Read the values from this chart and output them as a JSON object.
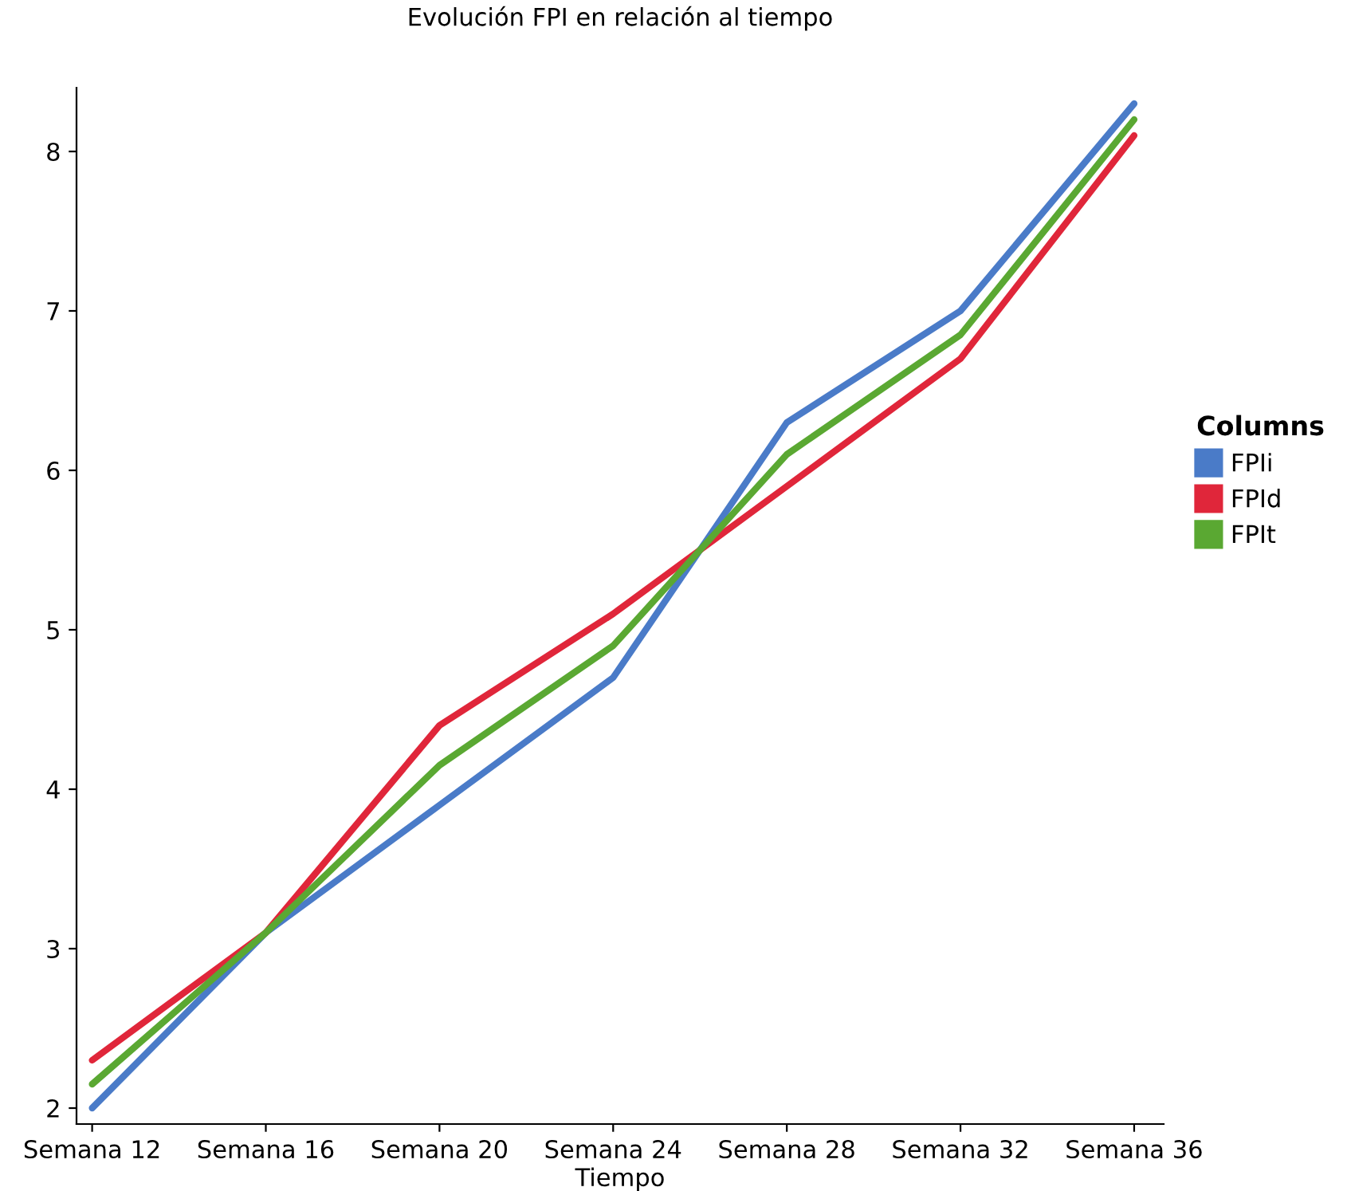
{
  "chart_data": {
    "type": "line",
    "title": "Evolución FPI en relación al tiempo",
    "xlabel": "Tiempo",
    "legend_title": "Columns",
    "categories": [
      "Semana 12",
      "Semana 16",
      "Semana 20",
      "Semana 24",
      "Semana 28",
      "Semana 32",
      "Semana 36"
    ],
    "series": [
      {
        "name": "FPIi",
        "color": "#4a7bc8",
        "values": [
          2.0,
          3.1,
          3.9,
          4.7,
          6.3,
          7.0,
          8.3
        ]
      },
      {
        "name": "FPId",
        "color": "#e0263a",
        "values": [
          2.3,
          3.1,
          4.4,
          5.1,
          5.9,
          6.7,
          8.1
        ]
      },
      {
        "name": "FPIt",
        "color": "#5aa832",
        "values": [
          2.15,
          3.1,
          4.15,
          4.9,
          6.1,
          6.85,
          8.2
        ]
      }
    ],
    "ylim": [
      1.9,
      8.4
    ],
    "yticks": [
      2,
      3,
      4,
      5,
      6,
      7,
      8
    ],
    "legend": "right",
    "grid": false,
    "marker": "none",
    "line_style": "solid"
  }
}
